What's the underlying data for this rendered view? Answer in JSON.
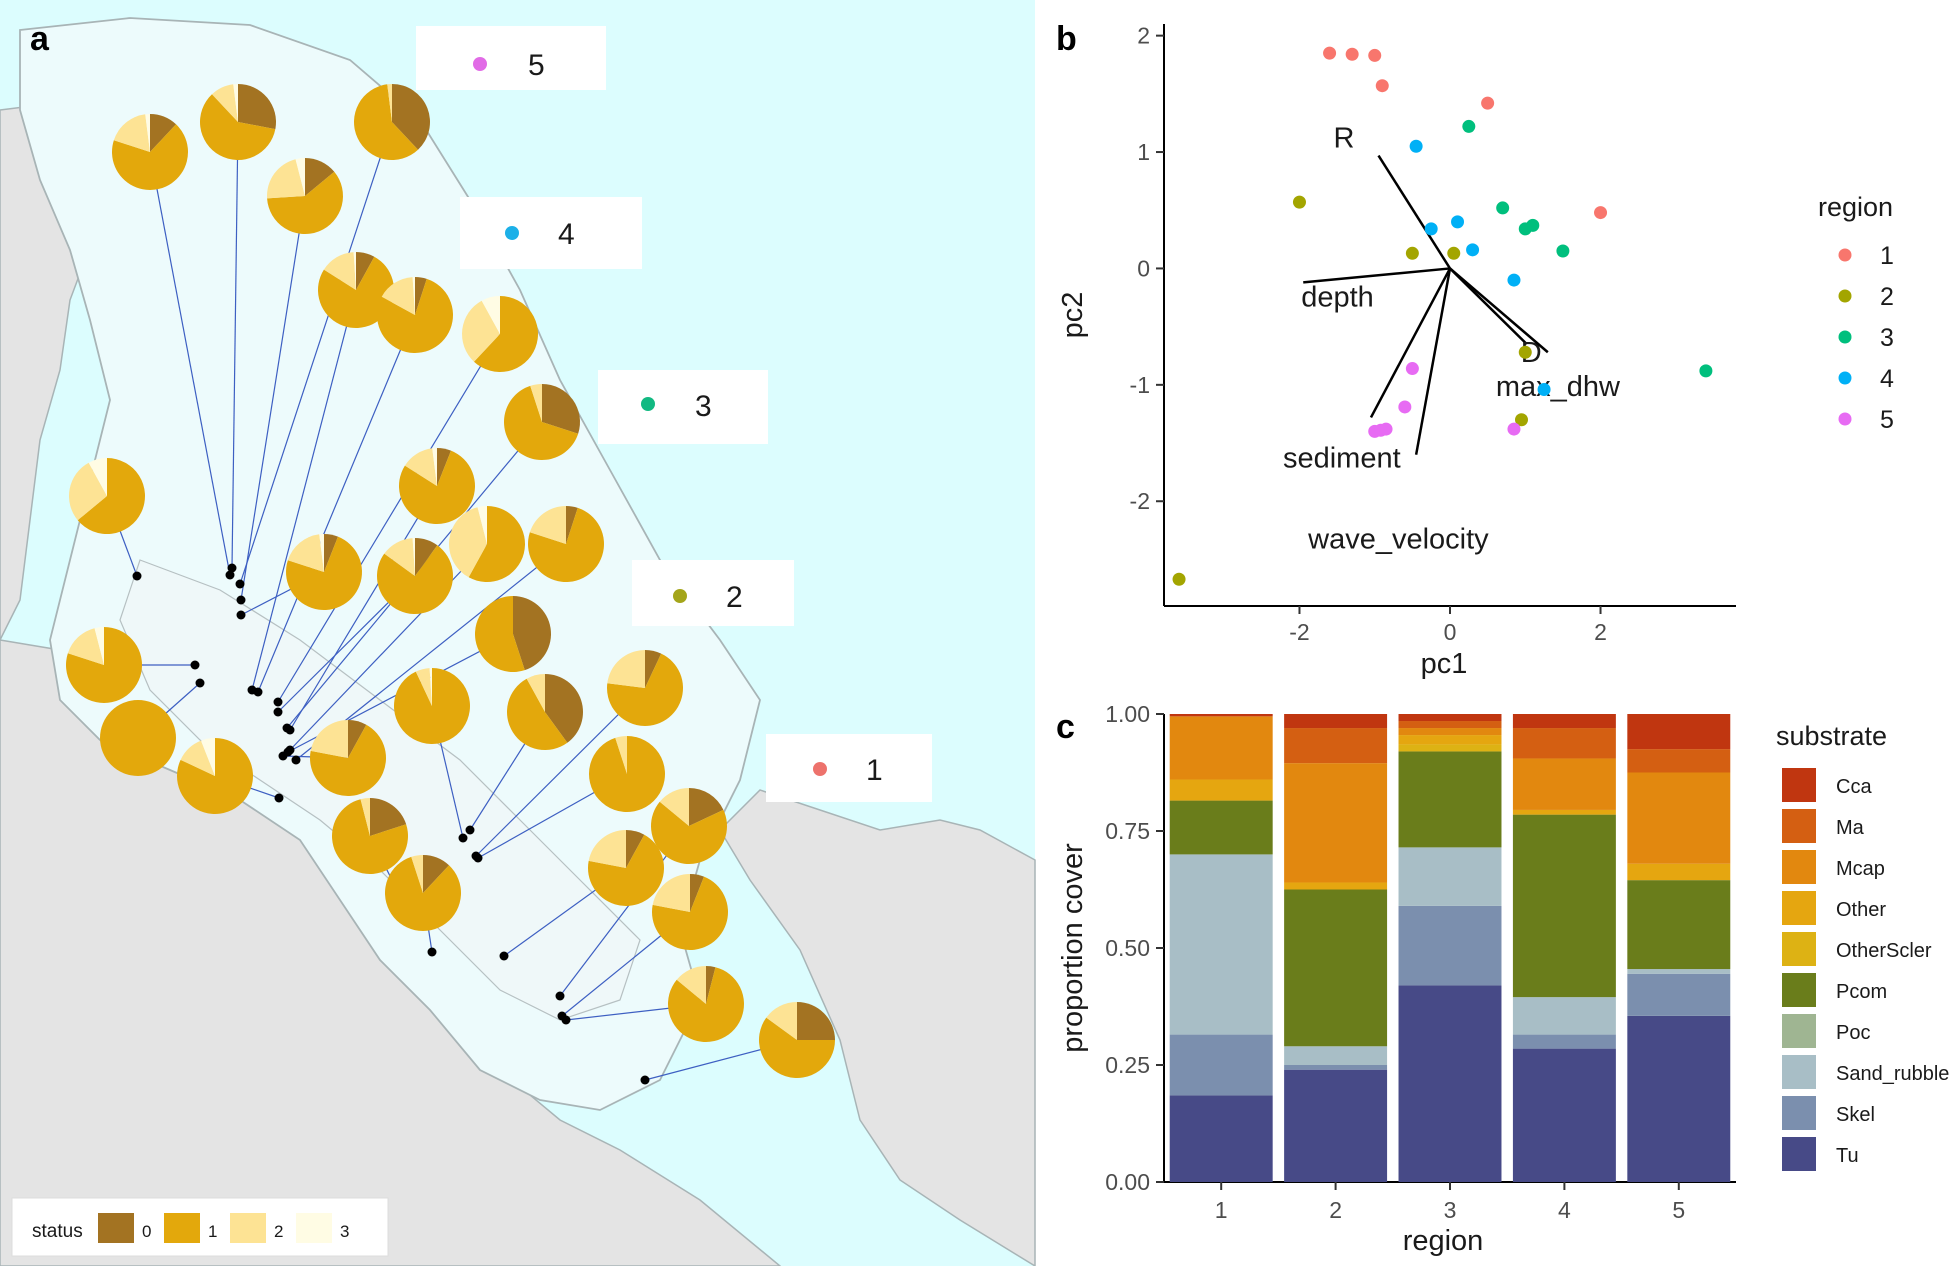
{
  "panels": {
    "a": {
      "letter": "a",
      "legend": {
        "title": "status",
        "items": [
          {
            "label": "0",
            "color": "#a37322"
          },
          {
            "label": "1",
            "color": "#e3a80c"
          },
          {
            "label": "2",
            "color": "#fde394"
          },
          {
            "label": "3",
            "color": "#fffce4"
          }
        ]
      },
      "region_labels": [
        {
          "label": "5",
          "color": "#e16be6"
        },
        {
          "label": "4",
          "color": "#1cb0e8"
        },
        {
          "label": "3",
          "color": "#12b982"
        },
        {
          "label": "2",
          "color": "#a4a51a"
        },
        {
          "label": "1",
          "color": "#ed726c"
        }
      ],
      "colors": {
        "sea": "#dcfdfe",
        "land": "#e4e4e4",
        "shelf": "#edfbfc",
        "shelf_edge": "#a8b4b6",
        "link_line": "#3d5fc2"
      }
    },
    "b": {
      "letter": "b"
    },
    "c": {
      "letter": "c"
    }
  },
  "chart_data": [
    {
      "type": "scatter",
      "panel": "b",
      "xlabel": "pc1",
      "ylabel": "pc2",
      "xlim": [
        -3.8,
        3.8
      ],
      "ylim": [
        -2.9,
        2.1
      ],
      "xticks": [
        -2,
        0,
        2
      ],
      "yticks": [
        2,
        1,
        0,
        -1,
        -2
      ],
      "grid": false,
      "legend": {
        "title": "region",
        "position": "right"
      },
      "series": [
        {
          "name": "1",
          "color": "#f8766d",
          "points": [
            [
              -1.6,
              1.85
            ],
            [
              -1.3,
              1.84
            ],
            [
              -1.0,
              1.83
            ],
            [
              -0.9,
              1.57
            ],
            [
              0.5,
              1.42
            ],
            [
              2.0,
              0.48
            ]
          ]
        },
        {
          "name": "2",
          "color": "#a3a500",
          "points": [
            [
              -2.0,
              0.57
            ],
            [
              -0.5,
              0.13
            ],
            [
              0.05,
              0.13
            ],
            [
              1.0,
              -0.72
            ],
            [
              0.95,
              -1.3
            ],
            [
              -3.6,
              -2.67
            ]
          ]
        },
        {
          "name": "3",
          "color": "#00bf7d",
          "points": [
            [
              0.25,
              1.22
            ],
            [
              0.7,
              0.52
            ],
            [
              1.0,
              0.34
            ],
            [
              1.1,
              0.37
            ],
            [
              1.5,
              0.15
            ],
            [
              3.4,
              -0.88
            ]
          ]
        },
        {
          "name": "4",
          "color": "#00b0f6",
          "points": [
            [
              -0.45,
              1.05
            ],
            [
              -0.25,
              0.34
            ],
            [
              0.1,
              0.4
            ],
            [
              0.3,
              0.16
            ],
            [
              0.85,
              -0.1
            ],
            [
              1.25,
              -1.04
            ]
          ]
        },
        {
          "name": "5",
          "color": "#e76bf3",
          "points": [
            [
              -0.5,
              -0.86
            ],
            [
              -0.6,
              -1.19
            ],
            [
              -1.0,
              -1.4
            ],
            [
              -0.92,
              -1.39
            ],
            [
              -0.85,
              -1.38
            ],
            [
              0.85,
              -1.38
            ]
          ]
        }
      ],
      "vectors": [
        {
          "label": "R",
          "end": [
            -0.95,
            0.97
          ]
        },
        {
          "label": "depth",
          "end": [
            -1.95,
            -0.12
          ]
        },
        {
          "label": "D",
          "end": [
            1.02,
            -0.65
          ]
        },
        {
          "label": "max_dhw",
          "end": [
            1.3,
            -0.72
          ]
        },
        {
          "label": "sediment",
          "end": [
            -1.05,
            -1.28
          ]
        },
        {
          "label": "wave_velocity",
          "end": [
            -0.45,
            -1.6
          ]
        }
      ]
    },
    {
      "type": "bar",
      "stacked": true,
      "panel": "c",
      "xlabel": "region",
      "ylabel": "proportion cover",
      "ylim": [
        0,
        1
      ],
      "yticks": [
        "0.00",
        "0.25",
        "0.50",
        "0.75",
        "1.00"
      ],
      "categories": [
        "1",
        "2",
        "3",
        "4",
        "5"
      ],
      "legend": {
        "title": "substrate",
        "position": "right"
      },
      "series": [
        {
          "name": "Tu",
          "color": "#474a87",
          "values": [
            0.185,
            0.24,
            0.42,
            0.285,
            0.355
          ]
        },
        {
          "name": "Skel",
          "color": "#7b8fae",
          "values": [
            0.13,
            0.01,
            0.17,
            0.03,
            0.09
          ]
        },
        {
          "name": "Sand_rubble",
          "color": "#a8bec6",
          "values": [
            0.385,
            0.04,
            0.125,
            0.08,
            0.01
          ]
        },
        {
          "name": "Poc",
          "color": "#9fb592",
          "values": [
            0.0,
            0.0,
            0.0,
            0.0,
            0.0
          ]
        },
        {
          "name": "Pcom",
          "color": "#6a7d1b",
          "values": [
            0.115,
            0.335,
            0.205,
            0.39,
            0.19
          ]
        },
        {
          "name": "OtherScler",
          "color": "#ddb214",
          "values": [
            0.0,
            0.0,
            0.015,
            0.0,
            0.0
          ]
        },
        {
          "name": "Other",
          "color": "#e5a610",
          "values": [
            0.045,
            0.015,
            0.02,
            0.01,
            0.035
          ]
        },
        {
          "name": "Mcap",
          "color": "#e2880f",
          "values": [
            0.135,
            0.255,
            0.015,
            0.11,
            0.195
          ]
        },
        {
          "name": "Ma",
          "color": "#d45f12",
          "values": [
            0.0,
            0.075,
            0.015,
            0.065,
            0.05
          ]
        },
        {
          "name": "Cca",
          "color": "#c03610",
          "values": [
            0.005,
            0.03,
            0.015,
            0.03,
            0.075
          ]
        }
      ],
      "legend_order": [
        "Cca",
        "Ma",
        "Mcap",
        "Other",
        "OtherScler",
        "Pcom",
        "Poc",
        "Sand_rubble",
        "Skel",
        "Tu"
      ]
    }
  ]
}
